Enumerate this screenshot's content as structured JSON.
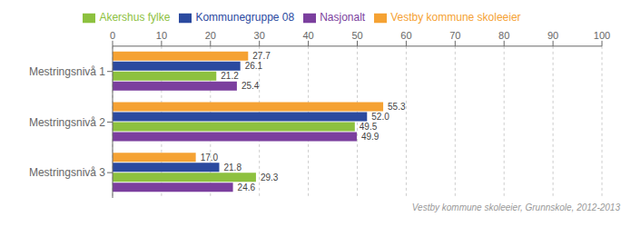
{
  "chart_data": {
    "type": "bar",
    "orientation": "horizontal",
    "categories": [
      "Mestringsnivå 1",
      "Mestringsnivå 2",
      "Mestringsnivå 3"
    ],
    "series": [
      {
        "name": "Vestby kommune skoleeier",
        "color": "#F5A233",
        "values": [
          27.7,
          55.3,
          17.0
        ],
        "value_labels": [
          "27.7",
          "55.3",
          "17.0"
        ]
      },
      {
        "name": "Kommunegruppe 08",
        "color": "#2B4A9F",
        "values": [
          26.1,
          52.0,
          21.8
        ],
        "value_labels": [
          "26.1",
          "52.0",
          "21.8"
        ]
      },
      {
        "name": "Akershus fylke",
        "color": "#8DC13F",
        "values": [
          21.2,
          49.5,
          29.3
        ],
        "value_labels": [
          "21.2",
          "49.5",
          "29.3"
        ]
      },
      {
        "name": "Nasjonalt",
        "color": "#7B3F9E",
        "values": [
          25.4,
          49.9,
          24.6
        ],
        "value_labels": [
          "25.4",
          "49.9",
          "24.6"
        ]
      }
    ],
    "xlim": [
      0,
      100
    ],
    "xticks": [
      0,
      10,
      20,
      30,
      40,
      50,
      60,
      70,
      80,
      90,
      100
    ],
    "grid": true,
    "legend": "top",
    "data_labels": true,
    "annotations": [
      "Vestby kommune skoleeier, Grunnskole, 2012-2013"
    ]
  }
}
